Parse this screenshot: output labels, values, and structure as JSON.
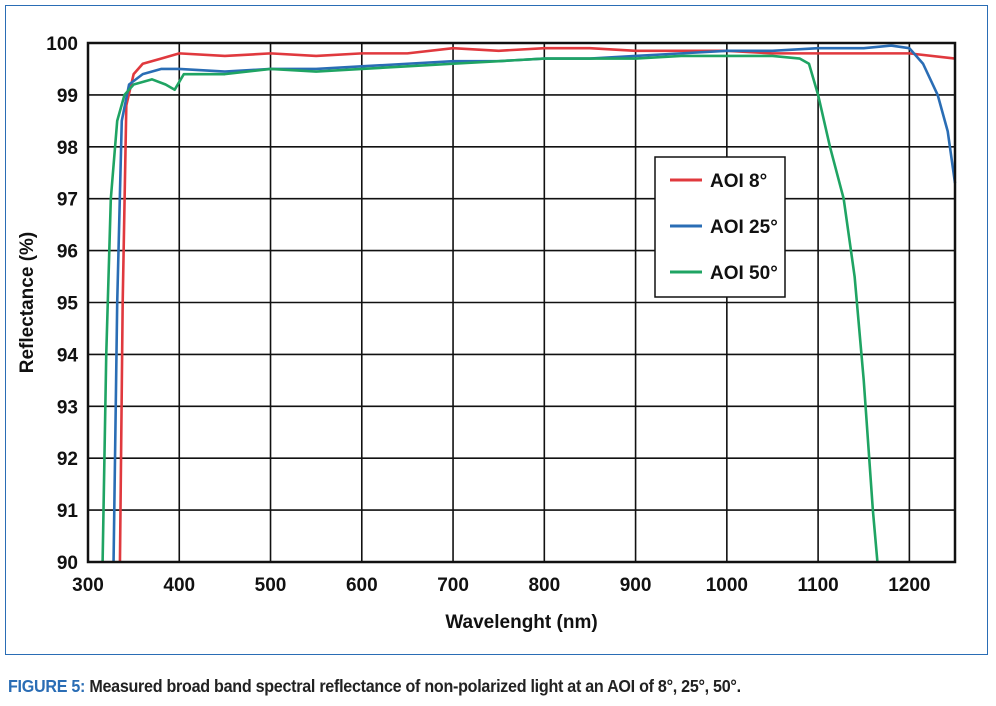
{
  "chart_data": {
    "type": "line",
    "xlabel": "Wavelenght (nm)",
    "ylabel": "Reflectance (%)",
    "xlim": [
      300,
      1250
    ],
    "ylim": [
      90,
      100
    ],
    "xticks": [
      300,
      400,
      500,
      600,
      700,
      800,
      900,
      1000,
      1100,
      1200
    ],
    "yticks": [
      90,
      91,
      92,
      93,
      94,
      95,
      96,
      97,
      98,
      99,
      100
    ],
    "grid": true,
    "legend_position": "center-right",
    "series": [
      {
        "name": "AOI 8°",
        "color": "#e0393e",
        "x": [
          335,
          338,
          342,
          350,
          360,
          380,
          400,
          450,
          500,
          550,
          600,
          650,
          700,
          750,
          800,
          850,
          900,
          950,
          1000,
          1050,
          1100,
          1150,
          1200,
          1250
        ],
        "y": [
          90,
          95,
          98.8,
          99.4,
          99.6,
          99.7,
          99.8,
          99.75,
          99.8,
          99.75,
          99.8,
          99.8,
          99.9,
          99.85,
          99.9,
          99.9,
          99.85,
          99.85,
          99.85,
          99.8,
          99.8,
          99.8,
          99.8,
          99.7
        ]
      },
      {
        "name": "AOI 25°",
        "color": "#2a6db5",
        "x": [
          328,
          332,
          337,
          345,
          360,
          380,
          400,
          450,
          500,
          550,
          600,
          650,
          700,
          750,
          800,
          850,
          900,
          950,
          1000,
          1050,
          1100,
          1150,
          1180,
          1200,
          1205,
          1215,
          1231,
          1242,
          1250
        ],
        "y": [
          90,
          95,
          98.5,
          99.2,
          99.4,
          99.5,
          99.5,
          99.45,
          99.5,
          99.5,
          99.55,
          99.6,
          99.65,
          99.65,
          99.7,
          99.7,
          99.75,
          99.8,
          99.85,
          99.85,
          99.9,
          99.9,
          99.95,
          99.9,
          99.8,
          99.6,
          99.0,
          98.3,
          97.3
        ]
      },
      {
        "name": "AOI 50°",
        "color": "#1fa463",
        "x": [
          316,
          320,
          325,
          332,
          340,
          350,
          370,
          385,
          395,
          405,
          450,
          500,
          550,
          600,
          650,
          700,
          750,
          800,
          850,
          900,
          950,
          1000,
          1050,
          1080,
          1090,
          1100,
          1113,
          1128,
          1140,
          1150,
          1160,
          1165
        ],
        "y": [
          90,
          94,
          97,
          98.5,
          99.0,
          99.2,
          99.3,
          99.2,
          99.1,
          99.4,
          99.4,
          99.5,
          99.45,
          99.5,
          99.55,
          99.6,
          99.65,
          99.7,
          99.7,
          99.7,
          99.75,
          99.75,
          99.75,
          99.7,
          99.6,
          99.0,
          98.0,
          97.0,
          95.5,
          93.5,
          91.0,
          90
        ]
      }
    ]
  },
  "caption": {
    "label": "FIGURE 5:",
    "text": " Measured broad band spectral reflectance of non-polarized light at an AOI of 8°, 25°, 50°."
  }
}
